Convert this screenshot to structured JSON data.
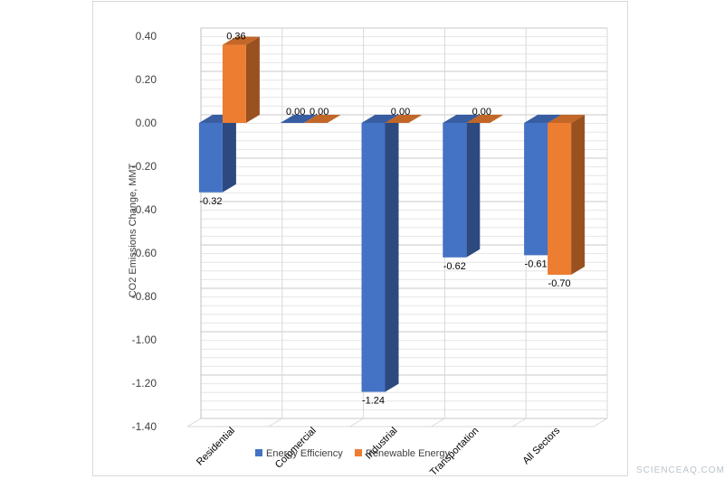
{
  "chart_data": {
    "type": "bar",
    "title": "",
    "xlabel": "",
    "ylabel": "CO2 Emissions Change, MMT",
    "categories": [
      "Residential",
      "Commercial",
      "Industrial",
      "Transportation",
      "All Sectors"
    ],
    "series": [
      {
        "name": "Energy Efficiency",
        "values": [
          -0.32,
          0.0,
          -1.24,
          -0.62,
          -0.61
        ],
        "color": "#4472c4"
      },
      {
        "name": "Renewable Energy",
        "values": [
          0.36,
          0.0,
          0.0,
          0.0,
          -0.7
        ],
        "color": "#ed7d31"
      }
    ],
    "data_labels": [
      [
        "-0.32",
        "0.00",
        "-1.24",
        "-0.62",
        "-0.61"
      ],
      [
        "0.36",
        "0.00",
        "0.00",
        "0.00",
        "-0.70"
      ]
    ],
    "ylim": [
      -1.4,
      0.4
    ],
    "yticks": [
      0.4,
      0.2,
      0.0,
      -0.2,
      -0.4,
      -0.6,
      -0.8,
      -1.0,
      -1.2,
      -1.4
    ],
    "ytick_labels": [
      "0.40",
      "0.20",
      "0.00",
      "-0.20",
      "-0.40",
      "-0.60",
      "-0.80",
      "-1.00",
      "-1.20",
      "-1.40"
    ],
    "grid": true,
    "legend_position": "bottom",
    "style": "3d-column"
  },
  "watermark": "SCIENCEAQ.COM"
}
